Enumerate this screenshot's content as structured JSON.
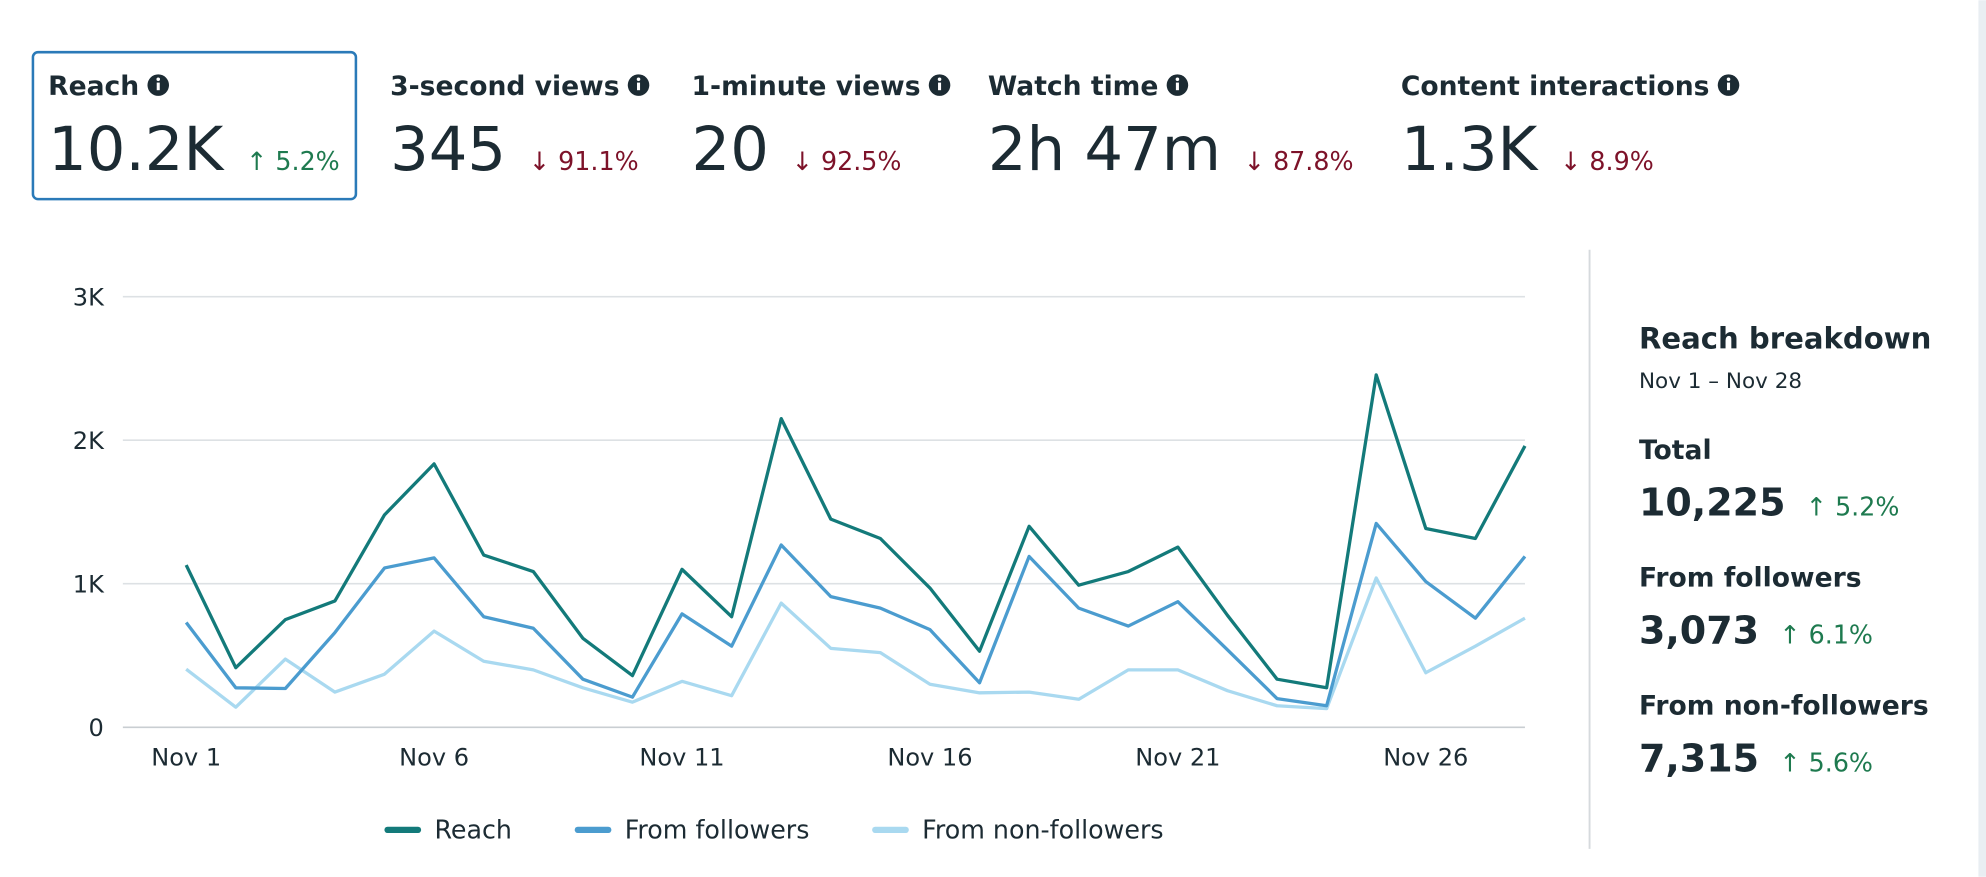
{
  "metrics": [
    {
      "label": "Reach",
      "value": "10.2K",
      "change": "↑ 5.2%",
      "color": "#1e7a4f",
      "selected": true
    },
    {
      "label": "3-second views",
      "value": "345",
      "change": "↓ 91.1%",
      "color": "#7d1229",
      "selected": false
    },
    {
      "label": "1-minute views",
      "value": "20",
      "change": "↓ 92.5%",
      "color": "#7d1229",
      "selected": false
    },
    {
      "label": "Watch time",
      "value": "2h 47m",
      "change": "↓ 87.8%",
      "color": "#7d1229",
      "selected": false
    },
    {
      "label": "Content interactions",
      "value": "1.3K",
      "change": "↓ 8.9%",
      "color": "#7d1229",
      "selected": false
    }
  ],
  "chart_data": {
    "type": "line",
    "categories": [
      "Nov 1",
      null,
      null,
      null,
      null,
      "Nov 6",
      null,
      null,
      null,
      null,
      "Nov 11",
      null,
      null,
      null,
      null,
      "Nov 16",
      null,
      null,
      null,
      null,
      "Nov 21",
      null,
      null,
      null,
      null,
      "Nov 26",
      null,
      null
    ],
    "series": [
      {
        "name": "Reach",
        "color": "#137a7a",
        "values": [
          1130,
          415,
          750,
          880,
          1480,
          1835,
          1200,
          1085,
          620,
          360,
          1100,
          770,
          2150,
          1450,
          1315,
          970,
          530,
          1400,
          990,
          1085,
          1255,
          780,
          335,
          275,
          2455,
          1385,
          1315,
          1960
        ]
      },
      {
        "name": "From followers",
        "color": "#4b9ccf",
        "values": [
          730,
          275,
          270,
          660,
          1110,
          1180,
          770,
          690,
          335,
          210,
          790,
          565,
          1270,
          910,
          830,
          680,
          310,
          1190,
          830,
          705,
          875,
          540,
          200,
          150,
          1420,
          1015,
          760,
          1190
        ]
      },
      {
        "name": "From non-followers",
        "color": "#a9d9f0",
        "values": [
          405,
          140,
          475,
          245,
          370,
          670,
          460,
          400,
          275,
          175,
          320,
          220,
          865,
          550,
          520,
          300,
          240,
          245,
          195,
          400,
          400,
          255,
          150,
          130,
          1040,
          380,
          565,
          760
        ]
      }
    ],
    "ylim": [
      0,
      3000
    ],
    "yticks": [
      0,
      {
        "value": 1000,
        "label": "1K"
      },
      {
        "value": 2000,
        "label": "2K"
      },
      {
        "value": 3000,
        "label": "3K"
      }
    ],
    "grid": true
  },
  "breakdown": {
    "title": "Reach breakdown",
    "date_range": "Nov 1 – Nov 28",
    "items": [
      {
        "label": "Total",
        "value": "10,225",
        "change": "↑ 5.2%",
        "color": "#1e7a4f"
      },
      {
        "label": "From followers",
        "value": "3,073",
        "change": "↑ 6.1%",
        "color": "#1e7a4f"
      },
      {
        "label": "From non-followers",
        "value": "7,315",
        "change": "↑ 5.6%",
        "color": "#1e7a4f"
      }
    ]
  }
}
